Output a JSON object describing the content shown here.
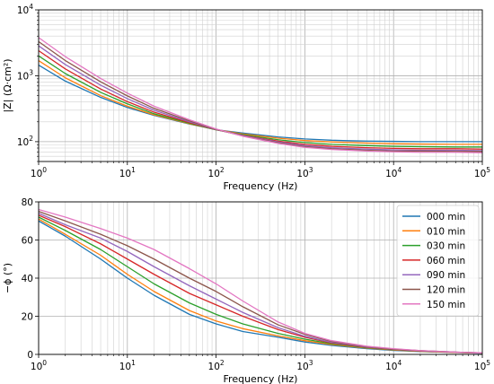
{
  "chart_data": [
    {
      "type": "line",
      "xlabel": "Frequency (Hz)",
      "ylabel": "|Z| (Ω·cm²)",
      "xscale": "log",
      "yscale": "log",
      "xlim": [
        1,
        100000
      ],
      "ylim": [
        50,
        10000
      ],
      "x_ticks": [
        {
          "value": 1,
          "base": "10",
          "exp": "0"
        },
        {
          "value": 10,
          "base": "10",
          "exp": "1"
        },
        {
          "value": 100,
          "base": "10",
          "exp": "2"
        },
        {
          "value": 1000,
          "base": "10",
          "exp": "3"
        },
        {
          "value": 10000,
          "base": "10",
          "exp": "4"
        },
        {
          "value": 100000,
          "base": "10",
          "exp": "5"
        }
      ],
      "y_ticks": [
        {
          "value": 100,
          "base": "10",
          "exp": "2"
        },
        {
          "value": 1000,
          "base": "10",
          "exp": "3"
        },
        {
          "value": 10000,
          "base": "10",
          "exp": "4"
        }
      ],
      "grid": true,
      "x": [
        1,
        2,
        5,
        10,
        20,
        50,
        100,
        200,
        500,
        1000,
        2000,
        5000,
        10000,
        20000,
        50000,
        100000
      ],
      "series": [
        {
          "values": [
            1450,
            830,
            470,
            330,
            250,
            185,
            152,
            135,
            118,
            110,
            105,
            102,
            101,
            100,
            100,
            100
          ]
        },
        {
          "values": [
            1700,
            930,
            500,
            345,
            255,
            187,
            152,
            131,
            113,
            104,
            99,
            95,
            93,
            92,
            91,
            91
          ]
        },
        {
          "values": [
            2000,
            1080,
            560,
            375,
            265,
            190,
            151,
            128,
            107,
            97,
            91,
            87,
            85,
            84,
            83,
            83
          ]
        },
        {
          "values": [
            2400,
            1270,
            630,
            405,
            280,
            195,
            152,
            125,
            102,
            91,
            85,
            81,
            79,
            78,
            78,
            77
          ]
        },
        {
          "values": [
            2850,
            1480,
            720,
            450,
            300,
            200,
            153,
            124,
            99,
            87,
            81,
            77,
            75,
            74,
            74,
            73
          ]
        },
        {
          "values": [
            3300,
            1700,
            810,
            495,
            320,
            207,
            154,
            122,
            96,
            84,
            78,
            74,
            72,
            72,
            71,
            71
          ]
        },
        {
          "values": [
            3800,
            1950,
            910,
            545,
            345,
            215,
            156,
            121,
            94,
            82,
            76,
            72,
            70,
            69,
            69,
            68
          ]
        }
      ]
    },
    {
      "type": "line",
      "xlabel": "Frequency (Hz)",
      "ylabel": "−ϕ (°)",
      "xscale": "log",
      "xlim": [
        1,
        100000
      ],
      "ylim": [
        0,
        80
      ],
      "x_ticks": [
        {
          "value": 1,
          "base": "10",
          "exp": "0"
        },
        {
          "value": 10,
          "base": "10",
          "exp": "1"
        },
        {
          "value": 100,
          "base": "10",
          "exp": "2"
        },
        {
          "value": 1000,
          "base": "10",
          "exp": "3"
        },
        {
          "value": 10000,
          "base": "10",
          "exp": "4"
        },
        {
          "value": 100000,
          "base": "10",
          "exp": "5"
        }
      ],
      "y_ticks": [
        0,
        20,
        40,
        60,
        80
      ],
      "grid": true,
      "legend_position": "top-right",
      "x": [
        1,
        2,
        5,
        10,
        20,
        50,
        100,
        200,
        500,
        1000,
        2000,
        5000,
        10000,
        20000,
        50000,
        100000
      ],
      "series": [
        {
          "name": "000 min",
          "values": [
            70,
            62,
            50,
            40,
            31,
            21,
            16,
            12,
            9,
            6.5,
            4.7,
            3.0,
            2.1,
            1.5,
            1.0,
            0.6
          ]
        },
        {
          "name": "010 min",
          "values": [
            71,
            63,
            52,
            42,
            33,
            23,
            17.5,
            13.5,
            9.7,
            7.2,
            5.2,
            3.3,
            2.3,
            1.6,
            1.0,
            0.7
          ]
        },
        {
          "name": "030 min",
          "values": [
            72,
            65,
            55,
            46,
            37,
            27,
            21,
            16,
            11,
            8.0,
            5.6,
            3.5,
            2.5,
            1.7,
            1.1,
            0.7
          ]
        },
        {
          "name": "060 min",
          "values": [
            73,
            67,
            58,
            50,
            42,
            32,
            26,
            20,
            13,
            9.0,
            6.0,
            3.7,
            2.6,
            1.8,
            1.1,
            0.7
          ]
        },
        {
          "name": "090 min",
          "values": [
            74,
            68,
            61,
            54,
            46,
            36,
            29,
            22,
            14,
            9.5,
            6.3,
            3.9,
            2.7,
            1.9,
            1.2,
            0.8
          ]
        },
        {
          "name": "120 min",
          "values": [
            75,
            70,
            63,
            57,
            50,
            40,
            33,
            25,
            15.5,
            10.5,
            6.8,
            4.1,
            2.8,
            2.0,
            1.2,
            0.8
          ]
        },
        {
          "name": "150 min",
          "values": [
            76,
            72,
            66,
            61,
            55,
            45,
            37,
            28,
            17,
            11,
            7.2,
            4.3,
            3.0,
            2.0,
            1.2,
            0.8
          ]
        }
      ]
    }
  ],
  "colors": [
    "#1f77b4",
    "#ff7f0e",
    "#2ca02c",
    "#d62728",
    "#9467bd",
    "#8c564b",
    "#e377c2"
  ]
}
